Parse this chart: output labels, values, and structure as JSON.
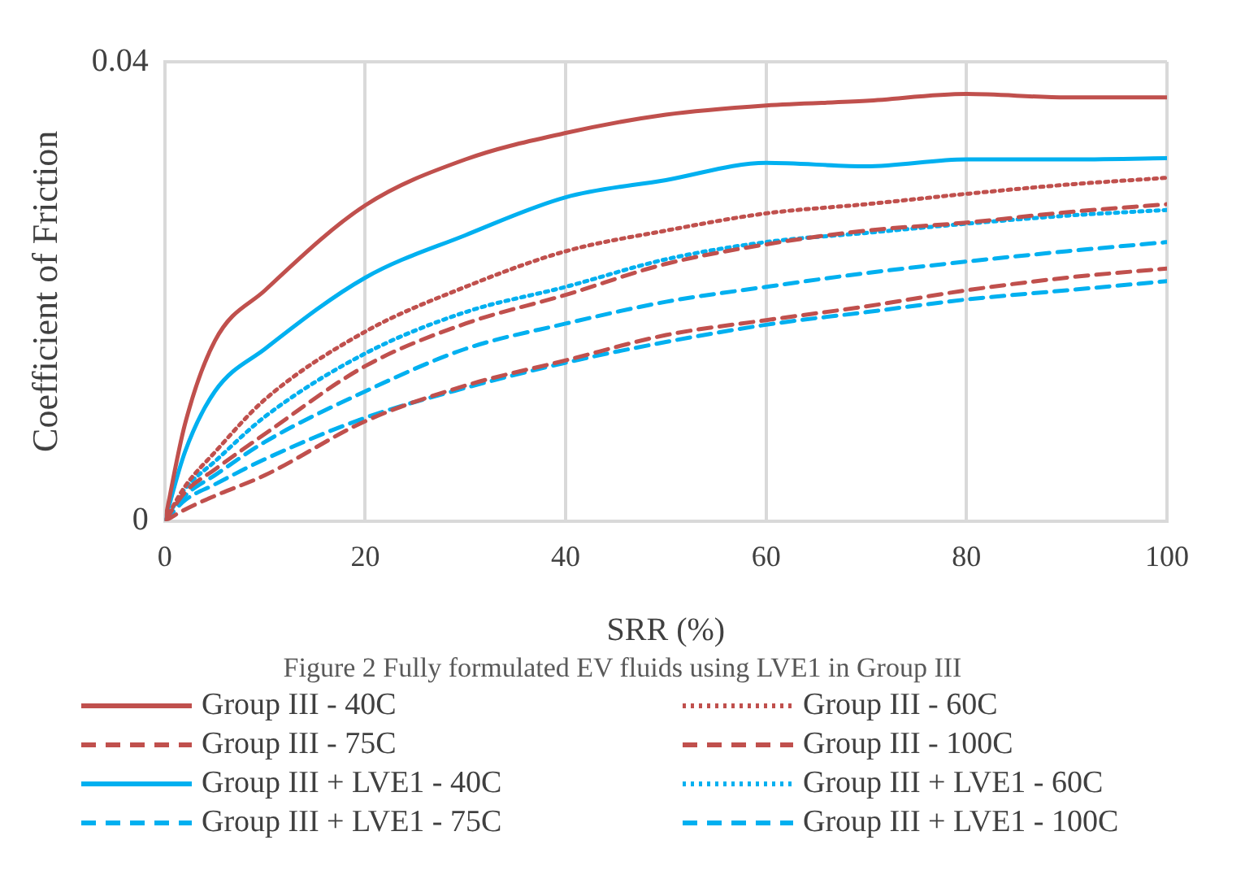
{
  "chart_data": {
    "type": "line",
    "title": "Figure 2  Fully formulated EV fluids using LVE1 in Group III",
    "xlabel": "SRR (%)",
    "ylabel": "Coefficient of Friction",
    "x": [
      0,
      2,
      5,
      10,
      20,
      30,
      40,
      50,
      60,
      70,
      80,
      90,
      100
    ],
    "xlim": [
      0,
      100
    ],
    "xticks": [
      0,
      20,
      40,
      60,
      80,
      100
    ],
    "ylim": [
      0,
      0.04
    ],
    "yticks": [
      0,
      0.04
    ],
    "grid": true,
    "legend": "bottom",
    "marker": "none",
    "series": [
      {
        "name": "Group III - 40C",
        "color": "#c0504d",
        "line_style": "solid",
        "values": [
          0,
          0.0084,
          0.0157,
          0.0201,
          0.0275,
          0.0315,
          0.0338,
          0.0354,
          0.0362,
          0.0366,
          0.0372,
          0.0369,
          0.0369
        ]
      },
      {
        "name": "Group III - 60C",
        "color": "#c0504d",
        "line_style": "dotted",
        "values": [
          0,
          0.003,
          0.006,
          0.0106,
          0.0165,
          0.0204,
          0.0235,
          0.0253,
          0.0268,
          0.0276,
          0.0285,
          0.0293,
          0.0299
        ]
      },
      {
        "name": "Group III - 75C",
        "color": "#c0504d",
        "line_style": "dashed",
        "values": [
          0,
          0.0025,
          0.0045,
          0.0076,
          0.0135,
          0.0172,
          0.0197,
          0.0224,
          0.0241,
          0.0253,
          0.026,
          0.0269,
          0.0276
        ]
      },
      {
        "name": "Group III - 100C",
        "color": "#c0504d",
        "line_style": "dashed",
        "values": [
          0,
          0.001,
          0.0022,
          0.004,
          0.0087,
          0.0118,
          0.014,
          0.0162,
          0.0175,
          0.0187,
          0.0201,
          0.0212,
          0.022
        ]
      },
      {
        "name": "Group III + LVE1 - 40C",
        "color": "#00b0f0",
        "line_style": "solid",
        "values": [
          0,
          0.006,
          0.0113,
          0.015,
          0.0212,
          0.0249,
          0.0282,
          0.0297,
          0.0312,
          0.0309,
          0.0315,
          0.0315,
          0.0316
        ]
      },
      {
        "name": "Group III + LVE1 - 60C",
        "color": "#00b0f0",
        "line_style": "dotted",
        "values": [
          0,
          0.0028,
          0.0052,
          0.0091,
          0.0146,
          0.0182,
          0.0204,
          0.0228,
          0.0243,
          0.0251,
          0.0259,
          0.0266,
          0.0271
        ]
      },
      {
        "name": "Group III + LVE1 - 75C",
        "color": "#00b0f0",
        "line_style": "dashed",
        "values": [
          0,
          0.0022,
          0.004,
          0.0069,
          0.0113,
          0.015,
          0.0172,
          0.0191,
          0.0204,
          0.0216,
          0.0226,
          0.0235,
          0.0243
        ]
      },
      {
        "name": "Group III + LVE1 - 100C",
        "color": "#00b0f0",
        "line_style": "dashed",
        "values": [
          0,
          0.0018,
          0.0032,
          0.0054,
          0.009,
          0.0116,
          0.0138,
          0.0156,
          0.0171,
          0.0182,
          0.0193,
          0.0201,
          0.0209
        ]
      }
    ]
  }
}
